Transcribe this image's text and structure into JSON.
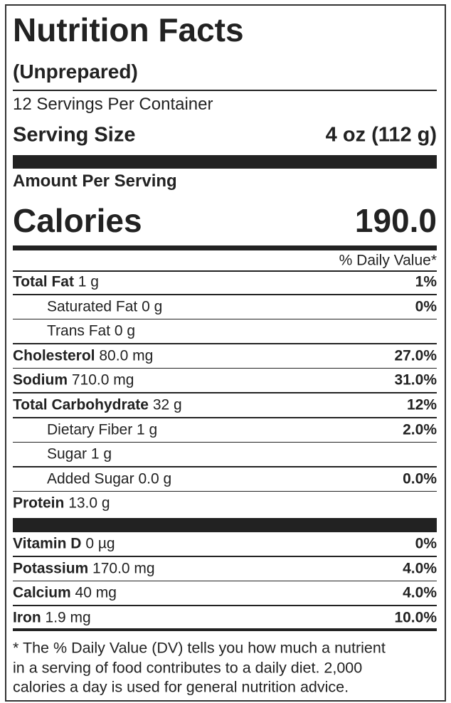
{
  "header": {
    "title": "Nutrition Facts",
    "subtitle": "(Unprepared)",
    "servings": "12 Servings Per Container",
    "serving_size_label": "Serving Size",
    "serving_size": "4 oz (112 g)"
  },
  "amount_per_serving": "Amount Per Serving",
  "calories": {
    "label": "Calories",
    "value": "190.0"
  },
  "daily_value_header": "% Daily Value*",
  "nutrients": [
    {
      "name": "Total Fat",
      "amount": "1 g",
      "dv": "1%"
    },
    {
      "name": "Saturated Fat",
      "amount": "0 g",
      "dv": "0%",
      "indent": true
    },
    {
      "name": "Trans Fat",
      "amount": "0 g",
      "indent": true
    },
    {
      "name": "Cholesterol",
      "amount": "80.0 mg",
      "dv": "27.0%"
    },
    {
      "name": "Sodium",
      "amount": "710.0 mg",
      "dv": "31.0%"
    },
    {
      "name": "Total Carbohydrate",
      "amount": "32 g",
      "dv": "12%"
    },
    {
      "name": "Dietary Fiber",
      "amount": "1 g",
      "dv": "2.0%",
      "indent": true
    },
    {
      "name": "Sugar",
      "amount": "1 g",
      "indent": true
    },
    {
      "name": "Added Sugar",
      "amount": "0.0 g",
      "dv": "0.0%",
      "indent": true
    },
    {
      "name": "Protein",
      "amount": "13.0 g"
    }
  ],
  "vitamins": [
    {
      "name": "Vitamin D",
      "amount": "0 µg",
      "dv": "0%"
    },
    {
      "name": "Potassium",
      "amount": "170.0 mg",
      "dv": "4.0%"
    },
    {
      "name": "Calcium",
      "amount": "40 mg",
      "dv": "4.0%"
    },
    {
      "name": "Iron",
      "amount": "1.9 mg",
      "dv": "10.0%"
    }
  ],
  "footnote": [
    "* The % Daily Value (DV) tells you how much a nutrient",
    "in a serving of food contributes to a daily diet. 2,000",
    "calories a day is used for general nutrition advice."
  ]
}
